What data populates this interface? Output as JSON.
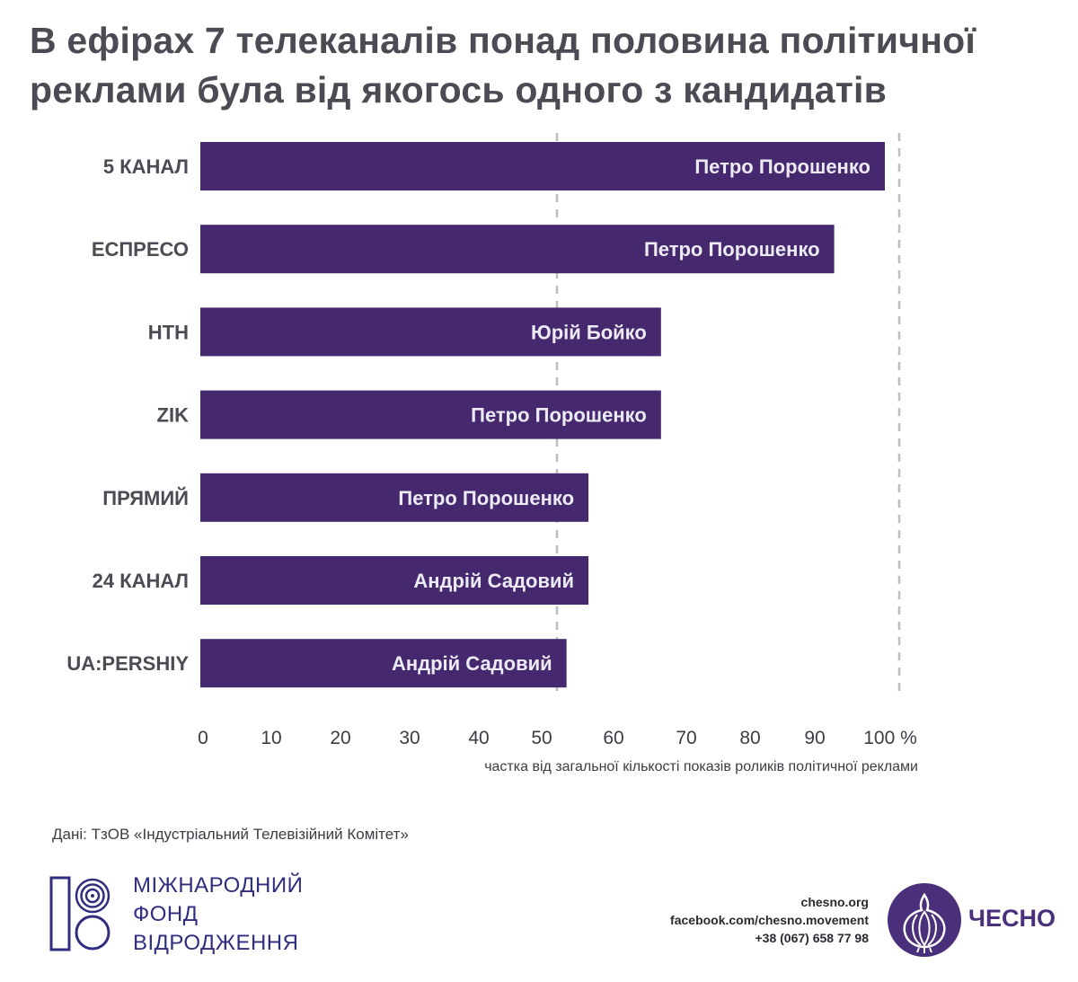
{
  "title_lines": [
    "В ефірах 7 телеканалів понад половина політичної",
    "реклами була від якогось одного з кандидатів"
  ],
  "chart_data": {
    "type": "bar",
    "orientation": "horizontal",
    "categories": [
      "5 КАНАЛ",
      "ЕСПРЕСО",
      "НТН",
      "ZIK",
      "ПРЯМИЙ",
      "24 КАНАЛ",
      "UA:PERSHIY"
    ],
    "values": [
      100,
      92.6,
      67.3,
      67.3,
      56.7,
      56.7,
      53.5
    ],
    "bar_labels": [
      "Петро Порошенко",
      "Петро Порошенко",
      "Юрій Бойко",
      "Петро Порошенко",
      "Петро Порошенко",
      "Андрій Садовий",
      "Андрій Садовий"
    ],
    "x_ticks": [
      "0",
      "10",
      "20",
      "30",
      "40",
      "50",
      "60",
      "70",
      "80",
      "90",
      "100 %"
    ],
    "xlim": [
      0,
      100
    ],
    "reference_lines": [
      50,
      100
    ],
    "xlabel": "частка від загальної кількості показів роликів політичної реклами",
    "bar_color": "#45286e",
    "grid": false,
    "legend": "none"
  },
  "source": "Дані: ТзОВ «Індустріальний Телевізійний Комітет»",
  "irf_logo": {
    "lines": [
      "МІЖНАРОДНИЙ",
      "ФОНД",
      "ВІДРОДЖЕННЯ"
    ],
    "color": "#2f2d7e"
  },
  "contacts": [
    "chesno.org",
    "facebook.com/chesno.movement",
    "+38 (067) 658 77 98"
  ],
  "chesno_logo": {
    "name": "ЧЕСНО",
    "color": "#4a2f7a",
    "icon": "garlic-icon"
  }
}
